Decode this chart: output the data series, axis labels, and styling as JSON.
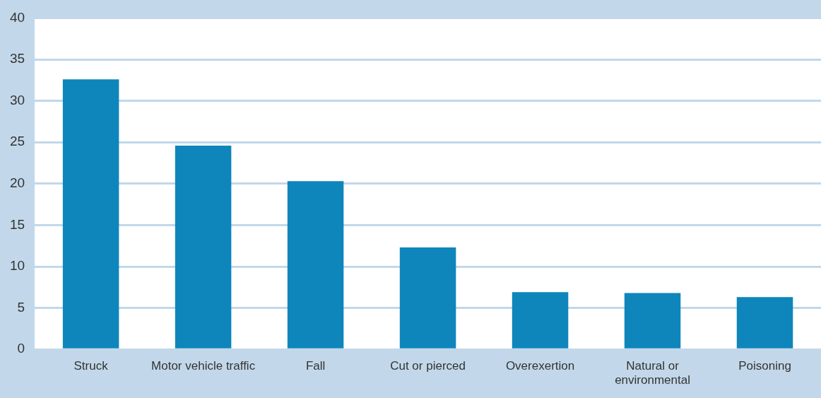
{
  "chart_data": {
    "type": "bar",
    "categories": [
      "Struck",
      "Motor vehicle traffic",
      "Fall",
      "Cut or pierced",
      "Overexertion",
      "Natural or environmental",
      "Poisoning"
    ],
    "values": [
      32.6,
      24.6,
      20.3,
      12.3,
      6.9,
      6.8,
      6.3
    ],
    "color": "#0e86bb",
    "ylim": [
      0,
      40
    ],
    "yticks": [
      0,
      5,
      10,
      15,
      20,
      25,
      30,
      35,
      40
    ],
    "grid": "y",
    "legend": false
  }
}
